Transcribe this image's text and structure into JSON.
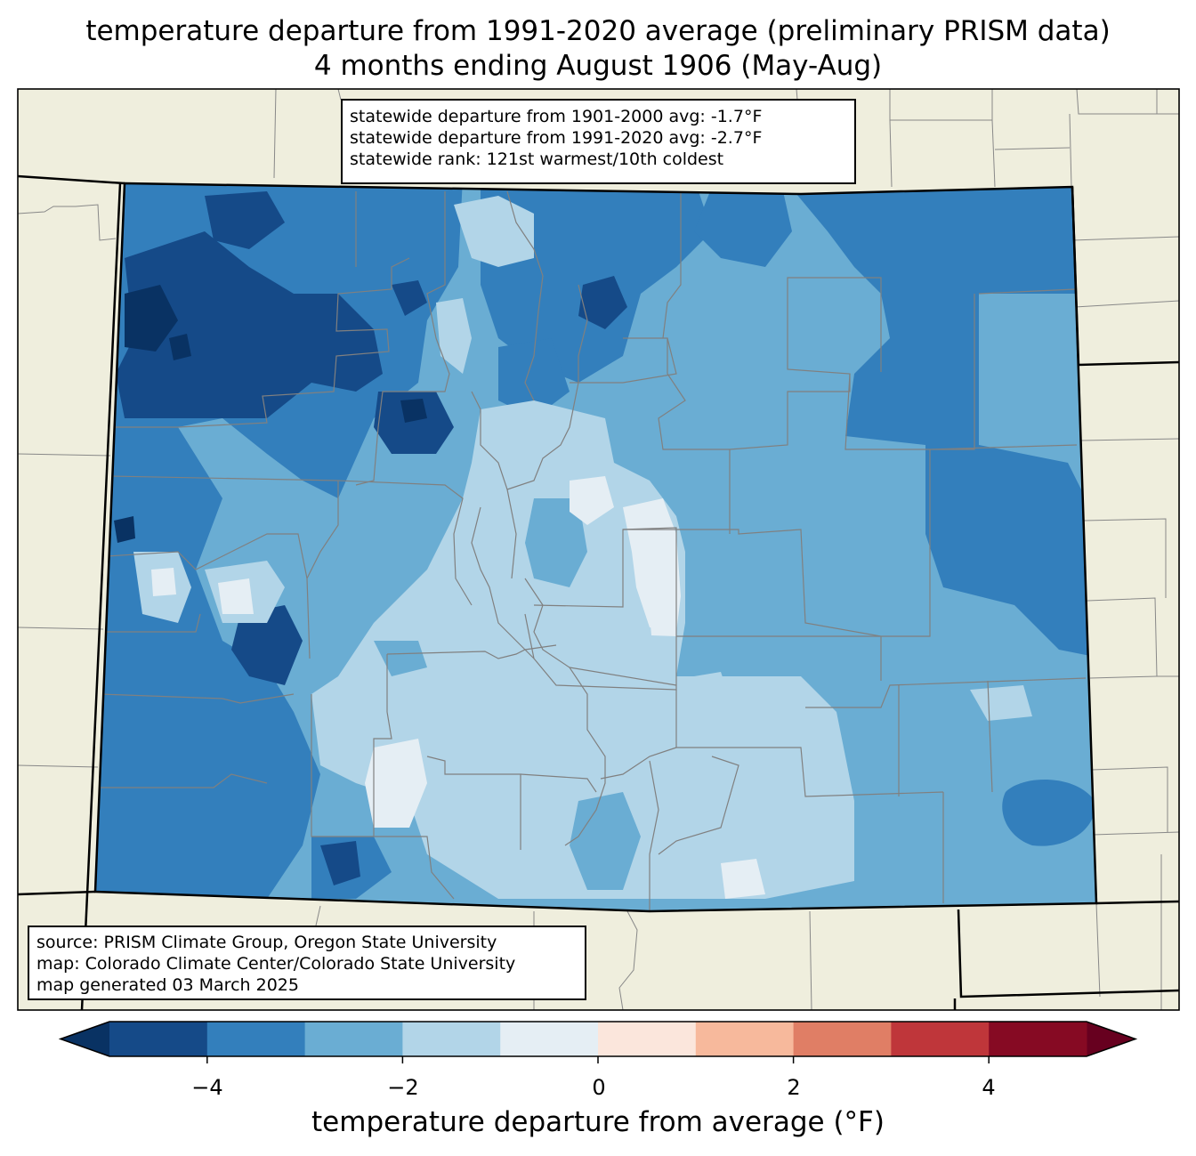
{
  "title": {
    "line1": "temperature departure from 1991-2020 average (preliminary PRISM data)",
    "line2": "4 months ending August 1906 (May-Aug)"
  },
  "stats": {
    "line1": "statewide departure from 1901-2000 avg: -1.7°F",
    "line2": "statewide departure from 1991-2020 avg: -2.7°F",
    "line3": "statewide rank: 121st warmest/10th coldest"
  },
  "source": {
    "line1": "source: PRISM Climate Group, Oregon State University",
    "line2": "map: Colorado Climate Center/Colorado State University",
    "line3": "map generated 03 March 2025"
  },
  "colorbar": {
    "label": "temperature departure from average (°F)",
    "ticks": [
      "−4",
      "−2",
      "0",
      "2",
      "4"
    ],
    "bins": [
      {
        "min": -5,
        "max": -4,
        "color": "#154a88"
      },
      {
        "min": -4,
        "max": -3,
        "color": "#337fbc"
      },
      {
        "min": -3,
        "max": -2,
        "color": "#6aadd3"
      },
      {
        "min": -2,
        "max": -1,
        "color": "#b2d5e8"
      },
      {
        "min": -1,
        "max": 0,
        "color": "#e5eef4"
      },
      {
        "min": 0,
        "max": 1,
        "color": "#fbe6dc"
      },
      {
        "min": 1,
        "max": 2,
        "color": "#f7b99c"
      },
      {
        "min": 2,
        "max": 3,
        "color": "#e07e65"
      },
      {
        "min": 3,
        "max": 4,
        "color": "#bf363a"
      },
      {
        "min": 4,
        "max": 5,
        "color": "#860a23"
      }
    ],
    "under_color": "#093263",
    "over_color": "#67001f"
  },
  "map_colors": {
    "background": "#efeedd",
    "darkest": "#093263",
    "minus4to5": "#154a88",
    "minus3to4": "#337fbc",
    "minus2to3": "#6aadd3",
    "minus1to2": "#b2d5e8",
    "zero_to_minus1": "#e5eef4"
  }
}
